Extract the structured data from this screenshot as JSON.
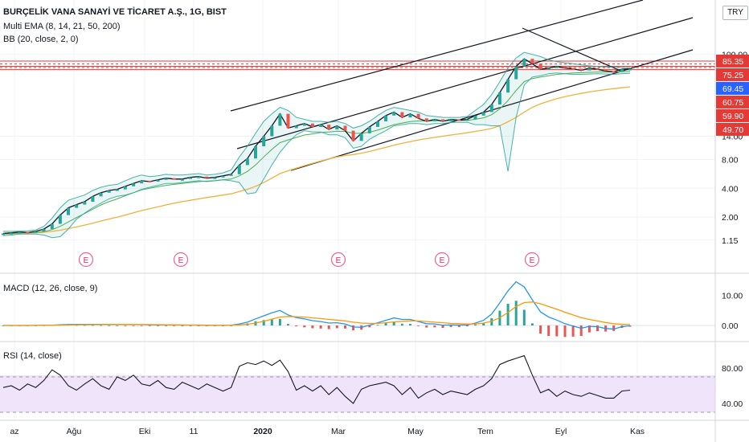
{
  "header": {
    "title": "BURÇELİK VANA SANAYİ VE TİCARET A.Ş., 1G, BIST",
    "ema_label": "Multi EMA (8, 14, 21, 50, 200)",
    "bb_label": "BB (20, close, 2, 0)",
    "currency": "TRY"
  },
  "chart_data": [
    {
      "type": "line",
      "name": "price",
      "scale": "log",
      "ylim": [
        1.0,
        100.0
      ],
      "y_ticks": [
        1.15,
        2.0,
        4.0,
        8.0,
        14.0,
        100.0
      ],
      "price_tags": [
        85.35,
        75.25,
        69.45,
        60.75,
        59.9,
        49.7
      ],
      "horizontal_levels": [
        85.35,
        79.5,
        75.25,
        73.0,
        69.45
      ],
      "earnings_markers": [
        "E",
        "E",
        "E",
        "E",
        "E"
      ],
      "x_labels": [
        "az",
        "Ağu",
        "Eki",
        "11",
        "2020",
        "Mar",
        "May",
        "Tem",
        "Eyl",
        "Kas"
      ],
      "series": [
        {
          "values": [
            1.35,
            1.37,
            1.4,
            1.38,
            1.42,
            1.5,
            1.7,
            2.1,
            2.5,
            2.7,
            2.9,
            3.3,
            3.6,
            3.8,
            3.9,
            4.2,
            4.5,
            4.8,
            4.7,
            4.9,
            5.1,
            5.0,
            5.0,
            5.2,
            5.3,
            5.1,
            5.2,
            5.4,
            5.6,
            7.0,
            8.2,
            11.0,
            14.0,
            18.0,
            24.0,
            17.0,
            18.0,
            19.0,
            17.5,
            18.5,
            16.5,
            18.0,
            16.0,
            12.5,
            15.0,
            17.5,
            20.0,
            23.0,
            25.0,
            22.0,
            24.0,
            21.5,
            20.0,
            21.0,
            20.0,
            21.0,
            20.5,
            21.0,
            23.0,
            25.0,
            30.0,
            40.0,
            55.0,
            75.0,
            90.0,
            80.0,
            70.0,
            72.0,
            75.0,
            72.0,
            71.0,
            68.0,
            72.0,
            70.0,
            67.0,
            66.0,
            70.0,
            71.0
          ]
        },
        {
          "name": "ema200",
          "values": [
            1.33,
            1.34,
            1.35,
            1.36,
            1.37,
            1.39,
            1.42,
            1.46,
            1.52,
            1.58,
            1.65,
            1.73,
            1.82,
            1.91,
            2.0,
            2.1,
            2.22,
            2.34,
            2.45,
            2.56,
            2.68,
            2.8,
            2.9,
            3.0,
            3.1,
            3.2,
            3.3,
            3.4,
            3.5,
            3.7,
            3.9,
            4.2,
            4.6,
            5.1,
            5.7,
            6.1,
            6.5,
            6.9,
            7.3,
            7.7,
            8.1,
            8.5,
            8.8,
            9.0,
            9.3,
            9.7,
            10.2,
            10.7,
            11.3,
            11.8,
            12.3,
            12.8,
            13.2,
            13.6,
            14.0,
            14.4,
            14.8,
            15.2,
            15.7,
            16.2,
            16.9,
            18.0,
            19.8,
            22.0,
            25.0,
            28.0,
            30.5,
            32.5,
            34.5,
            36.2,
            37.8,
            39.2,
            40.6,
            41.8,
            42.9,
            43.9,
            44.9,
            45.9
          ]
        },
        {
          "name": "ema50",
          "values": [
            1.34,
            1.35,
            1.37,
            1.38,
            1.39,
            1.41,
            1.48,
            1.6,
            1.78,
            1.98,
            2.18,
            2.42,
            2.68,
            2.9,
            3.1,
            3.35,
            3.6,
            3.85,
            4.0,
            4.15,
            4.3,
            4.4,
            4.5,
            4.6,
            4.7,
            4.75,
            4.8,
            4.9,
            5.0,
            5.4,
            6.0,
            7.0,
            8.5,
            10.2,
            12.0,
            12.8,
            13.6,
            14.4,
            14.8,
            15.3,
            15.5,
            15.8,
            15.7,
            15.0,
            15.0,
            15.4,
            16.2,
            17.3,
            18.5,
            19.2,
            19.9,
            20.2,
            20.2,
            20.3,
            20.3,
            20.4,
            20.4,
            20.5,
            21.0,
            21.8,
            23.5,
            27.0,
            33.0,
            42.0,
            52.0,
            56.0,
            58.0,
            60.0,
            62.0,
            63.0,
            64.0,
            64.5,
            65.0,
            65.5,
            65.5,
            65.5,
            66.0,
            66.5
          ]
        },
        {
          "name": "bb_upper",
          "values": [
            1.42,
            1.42,
            1.43,
            1.44,
            1.47,
            1.6,
            1.95,
            2.5,
            3.0,
            3.2,
            3.4,
            3.8,
            4.1,
            4.3,
            4.4,
            4.8,
            5.2,
            5.5,
            5.3,
            5.4,
            5.6,
            5.5,
            5.5,
            5.6,
            5.7,
            5.5,
            5.6,
            5.8,
            6.2,
            8.5,
            11.0,
            15.0,
            20.0,
            24.0,
            28.0,
            26.0,
            22.0,
            21.0,
            20.0,
            20.0,
            19.5,
            20.0,
            19.0,
            17.0,
            18.0,
            20.0,
            23.0,
            26.0,
            28.0,
            27.0,
            26.0,
            25.0,
            23.0,
            22.5,
            22.0,
            22.0,
            22.0,
            22.5,
            26.0,
            30.0,
            38.0,
            52.0,
            72.0,
            92.0,
            105.0,
            100.0,
            95.0,
            88.0,
            84.0,
            82.0,
            80.0,
            78.0,
            76.0,
            75.0,
            74.0,
            74.0,
            73.0,
            73.0
          ]
        },
        {
          "name": "bb_lower",
          "values": [
            1.28,
            1.3,
            1.33,
            1.33,
            1.33,
            1.3,
            1.22,
            1.25,
            1.5,
            1.9,
            2.2,
            2.5,
            2.8,
            3.1,
            3.3,
            3.4,
            3.6,
            3.9,
            4.1,
            4.3,
            4.5,
            4.5,
            4.6,
            4.7,
            4.8,
            4.7,
            4.8,
            4.9,
            4.8,
            4.6,
            3.5,
            3.6,
            5.0,
            7.0,
            9.5,
            12.0,
            14.5,
            16.0,
            15.5,
            15.5,
            14.5,
            14.5,
            13.5,
            10.5,
            11.0,
            13.0,
            14.5,
            16.0,
            18.0,
            18.5,
            19.0,
            19.0,
            18.5,
            19.0,
            19.0,
            19.5,
            19.5,
            19.5,
            18.5,
            18.5,
            18.0,
            18.0,
            6.0,
            22.0,
            48.0,
            58.0,
            60.0,
            63.0,
            64.0,
            63.0,
            62.0,
            62.0,
            62.5,
            63.0,
            62.5,
            62.0,
            63.0,
            63.5
          ]
        }
      ]
    },
    {
      "type": "line",
      "name": "macd",
      "y_ticks": [
        10.0,
        0.0
      ],
      "series": [
        {
          "values": [
            0,
            0,
            0,
            0,
            0.02,
            0.05,
            0.12,
            0.25,
            0.32,
            0.35,
            0.36,
            0.38,
            0.38,
            0.36,
            0.32,
            0.3,
            0.3,
            0.28,
            0.22,
            0.2,
            0.2,
            0.16,
            0.12,
            0.1,
            0.1,
            0.06,
            0.05,
            0.06,
            0.1,
            0.5,
            1.1,
            2.2,
            3.2,
            4.2,
            5.0,
            3.5,
            2.6,
            2.2,
            1.6,
            1.3,
            0.8,
            0.9,
            0.5,
            -0.5,
            -0.6,
            0.1,
            0.9,
            1.7,
            2.5,
            2.0,
            2.0,
            1.3,
            0.6,
            0.5,
            0.1,
            0.2,
            0.1,
            0.2,
            0.8,
            1.7,
            3.8,
            7.5,
            11.5,
            14.5,
            12.8,
            8.5,
            4.5,
            2.8,
            1.8,
            0.6,
            -0.2,
            -0.9,
            -0.3,
            -0.4,
            -1.0,
            -1.2,
            -0.4,
            -0.1
          ]
        },
        {
          "values": [
            0,
            0,
            0,
            0,
            0.01,
            0.02,
            0.05,
            0.1,
            0.16,
            0.21,
            0.24,
            0.27,
            0.3,
            0.32,
            0.32,
            0.31,
            0.31,
            0.3,
            0.28,
            0.26,
            0.24,
            0.22,
            0.2,
            0.17,
            0.15,
            0.13,
            0.11,
            0.1,
            0.1,
            0.2,
            0.4,
            0.8,
            1.4,
            2.1,
            2.8,
            3.0,
            2.9,
            2.8,
            2.5,
            2.3,
            2.0,
            1.8,
            1.5,
            1.1,
            0.8,
            0.7,
            0.7,
            0.9,
            1.2,
            1.4,
            1.5,
            1.5,
            1.3,
            1.1,
            0.9,
            0.7,
            0.6,
            0.5,
            0.5,
            0.8,
            1.4,
            2.6,
            4.3,
            6.3,
            7.6,
            7.8,
            7.2,
            6.3,
            5.4,
            4.4,
            3.5,
            2.6,
            2.0,
            1.5,
            1.0,
            0.6,
            0.4,
            0.3
          ]
        }
      ]
    },
    {
      "type": "line",
      "name": "rsi",
      "ylim": [
        22.0,
        100.0
      ],
      "y_ticks": [
        80.0,
        40.0
      ],
      "band": [
        70.0,
        30.0
      ],
      "values": [
        58,
        60,
        55,
        62,
        58,
        66,
        78,
        72,
        60,
        55,
        62,
        68,
        60,
        56,
        70,
        66,
        72,
        62,
        60,
        66,
        58,
        56,
        64,
        60,
        56,
        62,
        58,
        54,
        58,
        82,
        86,
        84,
        88,
        83,
        89,
        76,
        55,
        60,
        54,
        60,
        50,
        58,
        48,
        40,
        56,
        60,
        62,
        64,
        60,
        50,
        58,
        46,
        52,
        56,
        50,
        54,
        52,
        50,
        56,
        60,
        68,
        84,
        88,
        91,
        94,
        72,
        52,
        56,
        48,
        54,
        50,
        48,
        52,
        49,
        46,
        46,
        54,
        55
      ]
    }
  ]
}
